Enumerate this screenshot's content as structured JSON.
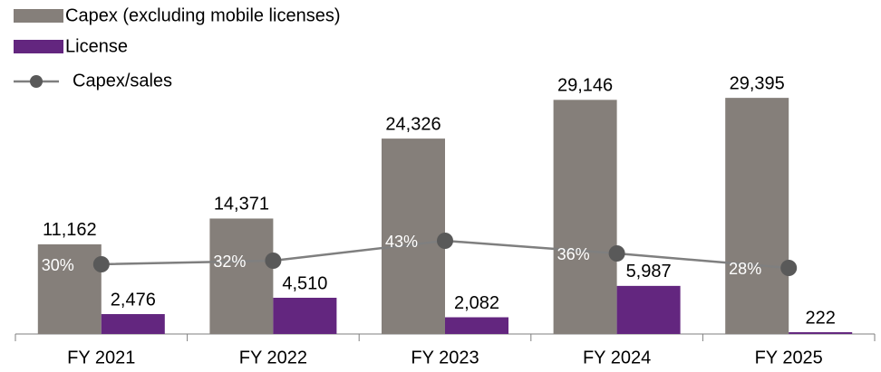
{
  "chart_data": {
    "type": "bar",
    "categories": [
      "FY 2021",
      "FY 2022",
      "FY 2023",
      "FY 2024",
      "FY 2025"
    ],
    "series": [
      {
        "name": "Capex (excluding mobile licenses)",
        "color": "#857f7a",
        "values": [
          11162,
          14371,
          24326,
          29146,
          29395
        ],
        "value_labels": [
          "11,162",
          "14,371",
          "24,326",
          "29,146",
          "29,395"
        ]
      },
      {
        "name": "License",
        "color": "#63267f",
        "values": [
          2476,
          4510,
          2082,
          5987,
          222
        ],
        "value_labels": [
          "2,476",
          "4,510",
          "2,082",
          "5,987",
          "222"
        ]
      },
      {
        "name": "Capex/sales",
        "type": "line",
        "axis": "y2",
        "color": "#7f7f7f",
        "marker_color": "#595959",
        "values": [
          30,
          32,
          43,
          36,
          28
        ],
        "value_labels": [
          "30%",
          "32%",
          "43%",
          "36%",
          "28%"
        ]
      }
    ],
    "ylim": [
      0,
      32000
    ],
    "y2lim": [
      -8.5,
      133.5
    ]
  }
}
